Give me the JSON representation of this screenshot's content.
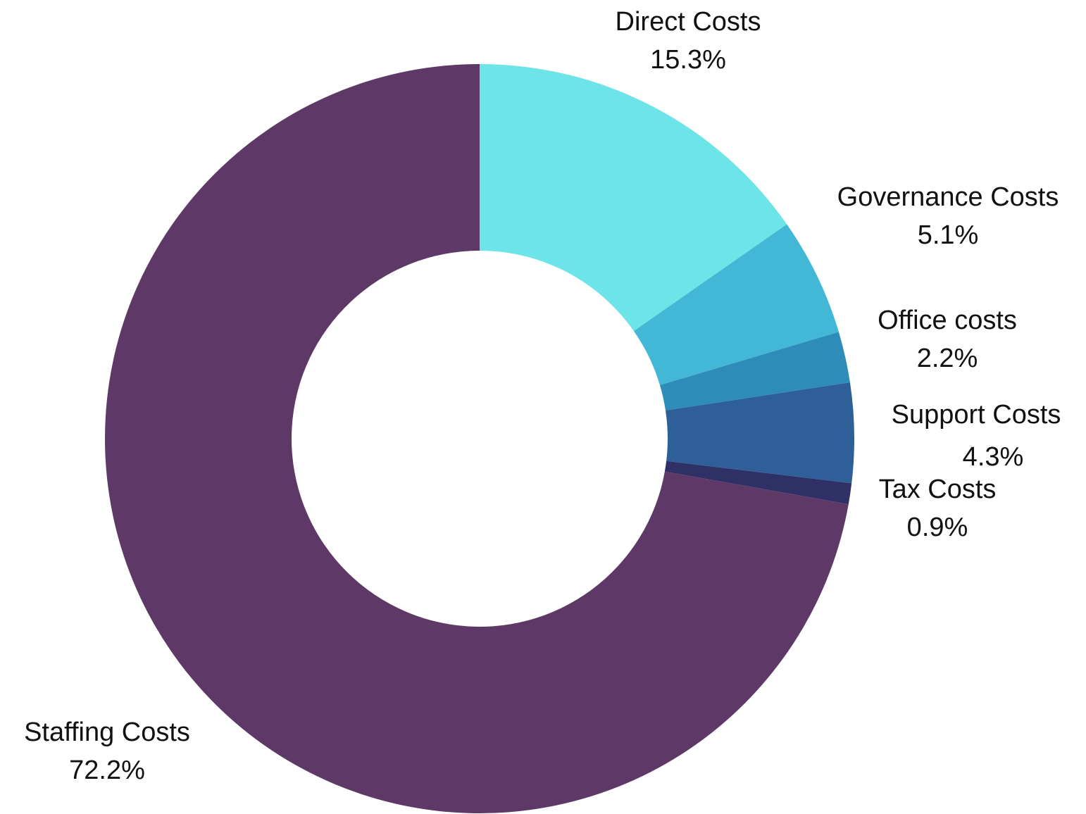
{
  "chart_data": {
    "type": "pie",
    "donut": true,
    "start": "12 o'clock, clockwise",
    "slices": [
      {
        "label": "Direct Costs",
        "value": 15.3,
        "value_label": "15.3%",
        "color": "#6de4e8"
      },
      {
        "label": "Governance Costs",
        "value": 5.1,
        "value_label": "5.1%",
        "color": "#42b7d6"
      },
      {
        "label": "Office costs",
        "value": 2.2,
        "value_label": "2.2%",
        "color": "#2e8cb9"
      },
      {
        "label": "Support Costs",
        "value": 4.3,
        "value_label": "4.3%",
        "color": "#2e5f99"
      },
      {
        "label": "Tax Costs",
        "value": 0.9,
        "value_label": "0.9%",
        "color": "#2e3066"
      },
      {
        "label": "Staffing Costs",
        "value": 72.2,
        "value_label": "72.2%",
        "color": "#5e3867"
      }
    ]
  }
}
